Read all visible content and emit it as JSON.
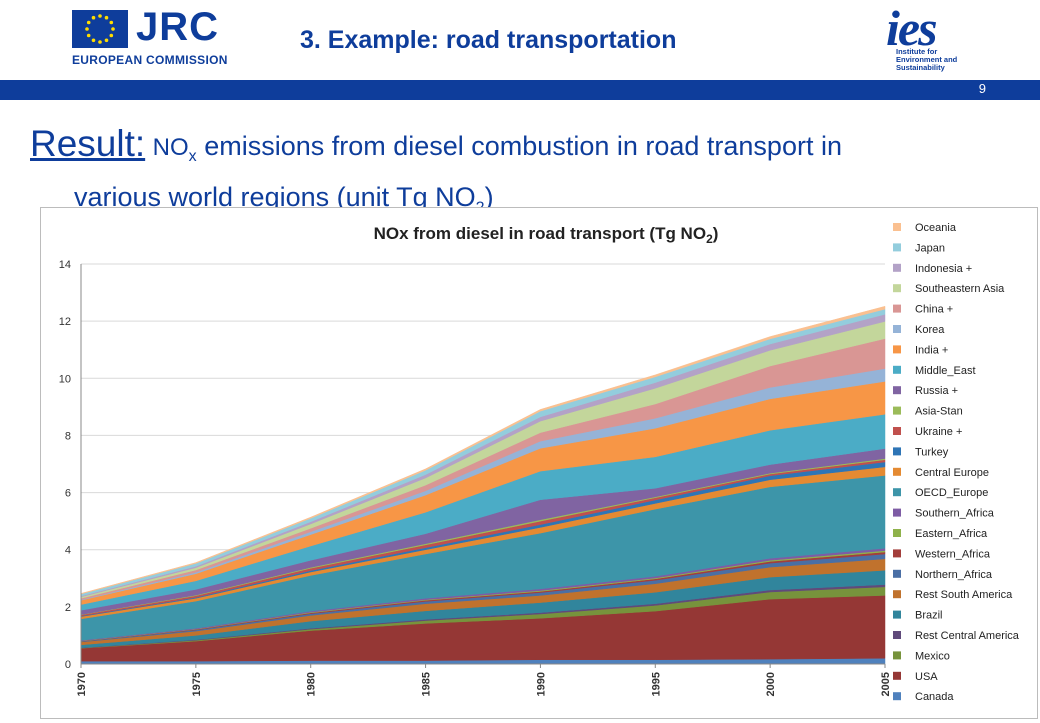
{
  "header": {
    "org_name": "JRC",
    "org_subtitle": "EUROPEAN COMMISSION",
    "slide_title": "3. Example: road transportation",
    "ies_logo": "ies",
    "ies_lines": [
      "Institute for",
      "Environment and",
      "Sustainability"
    ],
    "slide_number": "9"
  },
  "heading": {
    "lead": "Result:",
    "text_nox": "NO",
    "text_nox_sub": "x",
    "text_main": "emissions from diesel combustion in road transport in",
    "text_line2": "various world regions (unit Tg NO",
    "text_line2_sub": "2",
    "text_line2_end": ")"
  },
  "chart_data": {
    "type": "area",
    "stacked": true,
    "title": "NOx from diesel in road transport (Tg NO",
    "title_sub": "2",
    "title_end": ")",
    "x": [
      1970,
      1975,
      1980,
      1985,
      1990,
      1995,
      2000,
      2005
    ],
    "x_ticks": [
      "1970",
      "1975",
      "1980",
      "1985",
      "1990",
      "1995",
      "2000",
      "2005"
    ],
    "ylim": [
      0,
      14
    ],
    "y_ticks": [
      "0",
      "2",
      "4",
      "6",
      "8",
      "10",
      "12",
      "14"
    ],
    "grid": true,
    "legend_position": "right",
    "series": [
      {
        "name": "Canada",
        "color": "#4f81bd",
        "values": [
          0.1,
          0.1,
          0.12,
          0.12,
          0.15,
          0.15,
          0.17,
          0.2
        ]
      },
      {
        "name": "USA",
        "color": "#953735",
        "values": [
          0.45,
          0.7,
          1.05,
          1.3,
          1.45,
          1.7,
          2.1,
          2.2
        ]
      },
      {
        "name": "Mexico",
        "color": "#77933c",
        "values": [
          0.01,
          0.03,
          0.05,
          0.1,
          0.15,
          0.2,
          0.25,
          0.3
        ]
      },
      {
        "name": "Rest Central America",
        "color": "#604a7b",
        "values": [
          0.01,
          0.02,
          0.03,
          0.04,
          0.05,
          0.06,
          0.07,
          0.08
        ]
      },
      {
        "name": "Brazil",
        "color": "#31859c",
        "values": [
          0.1,
          0.15,
          0.25,
          0.3,
          0.35,
          0.4,
          0.45,
          0.5
        ]
      },
      {
        "name": "Rest South America",
        "color": "#c0722d",
        "values": [
          0.1,
          0.15,
          0.2,
          0.25,
          0.25,
          0.3,
          0.35,
          0.4
        ]
      },
      {
        "name": "Northern_Africa",
        "color": "#4a6fa5",
        "values": [
          0.02,
          0.04,
          0.06,
          0.08,
          0.1,
          0.12,
          0.14,
          0.17
        ]
      },
      {
        "name": "Western_Africa",
        "color": "#a33e3b",
        "values": [
          0.01,
          0.02,
          0.03,
          0.04,
          0.04,
          0.05,
          0.06,
          0.07
        ]
      },
      {
        "name": "Eastern_Africa",
        "color": "#8fb24b",
        "values": [
          0.01,
          0.01,
          0.02,
          0.02,
          0.03,
          0.03,
          0.04,
          0.05
        ]
      },
      {
        "name": "Southern_Africa",
        "color": "#7e5ca5",
        "values": [
          0.02,
          0.03,
          0.04,
          0.05,
          0.06,
          0.06,
          0.07,
          0.08
        ]
      },
      {
        "name": "OECD_Europe",
        "color": "#3d95a9",
        "values": [
          0.75,
          0.95,
          1.25,
          1.55,
          1.95,
          2.35,
          2.5,
          2.55
        ]
      },
      {
        "name": "Central Europe",
        "color": "#e48a32",
        "values": [
          0.08,
          0.1,
          0.12,
          0.15,
          0.2,
          0.2,
          0.25,
          0.3
        ]
      },
      {
        "name": "Turkey",
        "color": "#2e75b6",
        "values": [
          0.02,
          0.03,
          0.05,
          0.07,
          0.1,
          0.12,
          0.14,
          0.17
        ]
      },
      {
        "name": "Ukraine +",
        "color": "#c0504d",
        "values": [
          0.04,
          0.06,
          0.08,
          0.1,
          0.12,
          0.08,
          0.06,
          0.08
        ]
      },
      {
        "name": "Asia-Stan",
        "color": "#9bbb59",
        "values": [
          0.01,
          0.02,
          0.03,
          0.04,
          0.05,
          0.03,
          0.03,
          0.04
        ]
      },
      {
        "name": "Russia +",
        "color": "#8064a2",
        "values": [
          0.15,
          0.2,
          0.25,
          0.35,
          0.7,
          0.3,
          0.3,
          0.35
        ]
      },
      {
        "name": "Middle_East",
        "color": "#4bacc6",
        "values": [
          0.2,
          0.3,
          0.5,
          0.75,
          1.0,
          1.1,
          1.2,
          1.2
        ]
      },
      {
        "name": "India +",
        "color": "#f79646",
        "values": [
          0.15,
          0.25,
          0.4,
          0.6,
          0.8,
          1.0,
          1.1,
          1.15
        ]
      },
      {
        "name": "Korea",
        "color": "#95b3d7",
        "values": [
          0.02,
          0.05,
          0.1,
          0.15,
          0.25,
          0.35,
          0.4,
          0.45
        ]
      },
      {
        "name": "China +",
        "color": "#d99694",
        "values": [
          0.05,
          0.08,
          0.12,
          0.2,
          0.3,
          0.5,
          0.75,
          1.05
        ]
      },
      {
        "name": "Southeastern Asia",
        "color": "#c3d69b",
        "values": [
          0.05,
          0.08,
          0.15,
          0.25,
          0.4,
          0.55,
          0.55,
          0.6
        ]
      },
      {
        "name": "Indonesia +",
        "color": "#b3a2c7",
        "values": [
          0.03,
          0.05,
          0.08,
          0.12,
          0.15,
          0.2,
          0.22,
          0.25
        ]
      },
      {
        "name": "Japan",
        "color": "#93cddd",
        "values": [
          0.07,
          0.1,
          0.12,
          0.15,
          0.2,
          0.2,
          0.18,
          0.18
        ]
      },
      {
        "name": "Oceania",
        "color": "#fac090",
        "values": [
          0.02,
          0.03,
          0.04,
          0.05,
          0.06,
          0.07,
          0.08,
          0.1
        ]
      }
    ]
  }
}
